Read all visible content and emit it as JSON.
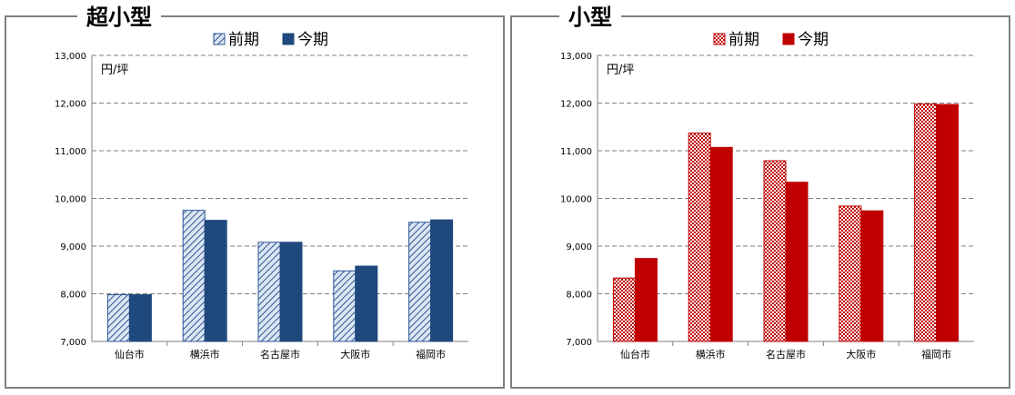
{
  "chart_data": [
    {
      "type": "bar",
      "title": "超小型",
      "unit_label": "円/坪",
      "categories": [
        "仙台市",
        "横浜市",
        "名古屋市",
        "大阪市",
        "福岡市"
      ],
      "series": [
        {
          "name": "前期",
          "values": [
            7980,
            9750,
            9080,
            8480,
            9500
          ],
          "color": "#2e5597",
          "pattern": "diagonal-stripe"
        },
        {
          "name": "今期",
          "values": [
            7980,
            9540,
            9080,
            8580,
            9550
          ],
          "color": "#1f497d",
          "pattern": "solid"
        }
      ],
      "ylim": [
        7000,
        13000
      ],
      "yticks": [
        "7,000",
        "8,000",
        "9,000",
        "10,000",
        "11,000",
        "12,000",
        "13,000"
      ],
      "grid": "dashed horizontal",
      "legend": "top"
    },
    {
      "type": "bar",
      "title": "小型",
      "unit_label": "円/坪",
      "categories": [
        "仙台市",
        "横浜市",
        "名古屋市",
        "大阪市",
        "福岡市"
      ],
      "series": [
        {
          "name": "前期",
          "values": [
            8330,
            11370,
            10790,
            9840,
            11980
          ],
          "color": "#c00000",
          "pattern": "checker"
        },
        {
          "name": "今期",
          "values": [
            8740,
            11070,
            10340,
            9740,
            11970
          ],
          "color": "#c00000",
          "pattern": "solid"
        }
      ],
      "ylim": [
        7000,
        13000
      ],
      "yticks": [
        "7,000",
        "8,000",
        "9,000",
        "10,000",
        "11,000",
        "12,000",
        "13,000"
      ],
      "grid": "dashed horizontal",
      "legend": "top"
    }
  ]
}
